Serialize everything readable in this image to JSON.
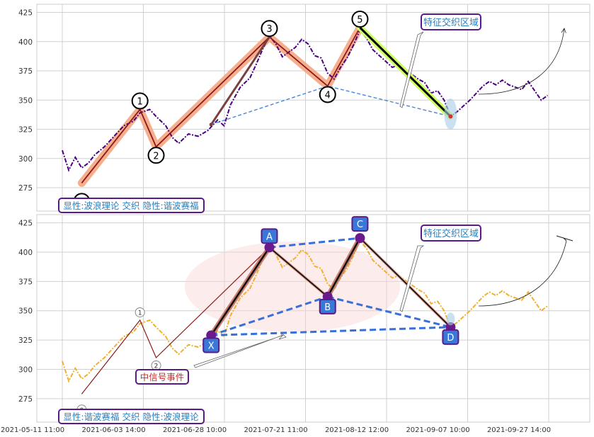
{
  "chart_data": [
    {
      "type": "line",
      "panel": "top",
      "x_ticks": [
        "2021-05-11 11:00",
        "2021-06-03 14:00",
        "2021-06-28 10:00",
        "2021-07-21 11:00",
        "2021-08-12 12:00",
        "2021-09-07 10:00",
        "2021-09-27 14:00"
      ],
      "ylim": [
        255,
        432
      ],
      "y_ticks": [
        275,
        300,
        325,
        350,
        375,
        400,
        425
      ],
      "grid": true,
      "price_color": "#4b0082",
      "price_series": [
        [
          0,
          307
        ],
        [
          2,
          290
        ],
        [
          4,
          301
        ],
        [
          6,
          292
        ],
        [
          8,
          296
        ],
        [
          10,
          303
        ],
        [
          13,
          310
        ],
        [
          16,
          319
        ],
        [
          19,
          328
        ],
        [
          22,
          332
        ],
        [
          24,
          339
        ],
        [
          27,
          342
        ],
        [
          29,
          336
        ],
        [
          32,
          328
        ],
        [
          34,
          318
        ],
        [
          36,
          313
        ],
        [
          39,
          321
        ],
        [
          42,
          319
        ],
        [
          45,
          324
        ],
        [
          48,
          333
        ],
        [
          50,
          328
        ],
        [
          52,
          346
        ],
        [
          55,
          361
        ],
        [
          58,
          369
        ],
        [
          60,
          381
        ],
        [
          62,
          394
        ],
        [
          64,
          405
        ],
        [
          66,
          398
        ],
        [
          68,
          387
        ],
        [
          70,
          391
        ],
        [
          72,
          395
        ],
        [
          74,
          402
        ],
        [
          76,
          398
        ],
        [
          78,
          388
        ],
        [
          80,
          386
        ],
        [
          82,
          373
        ],
        [
          84,
          368
        ],
        [
          86,
          378
        ],
        [
          88,
          386
        ],
        [
          90,
          397
        ],
        [
          92,
          410
        ],
        [
          94,
          403
        ],
        [
          96,
          393
        ],
        [
          98,
          388
        ],
        [
          100,
          383
        ],
        [
          102,
          378
        ],
        [
          104,
          380
        ],
        [
          106,
          376
        ],
        [
          108,
          372
        ],
        [
          110,
          368
        ],
        [
          112,
          365
        ],
        [
          114,
          356
        ],
        [
          116,
          358
        ],
        [
          118,
          350
        ],
        [
          120,
          336
        ],
        [
          122,
          340
        ],
        [
          124,
          345
        ],
        [
          126,
          350
        ],
        [
          128,
          356
        ],
        [
          130,
          362
        ],
        [
          132,
          366
        ],
        [
          134,
          363
        ],
        [
          136,
          367
        ],
        [
          138,
          363
        ],
        [
          140,
          361
        ],
        [
          142,
          359
        ],
        [
          144,
          366
        ],
        [
          146,
          358
        ],
        [
          148,
          350
        ],
        [
          150,
          354
        ]
      ],
      "wave_points": [
        {
          "label": "0",
          "x": 6,
          "y": 279
        },
        {
          "label": "1",
          "x": 24,
          "y": 342
        },
        {
          "label": "2",
          "x": 29,
          "y": 310
        },
        {
          "label": "3",
          "x": 64,
          "y": 404
        },
        {
          "label": "4",
          "x": 82,
          "y": 362
        },
        {
          "label": "5",
          "x": 92,
          "y": 412
        }
      ],
      "extra_segments": [
        {
          "from": [
            46,
            329
          ],
          "to": [
            64,
            404
          ],
          "color": "#7b3f3f"
        },
        {
          "from": [
            92,
            412
          ],
          "to": [
            120,
            336
          ],
          "color": "#000000",
          "highlight": "#ccff66"
        }
      ],
      "dashed_line": {
        "from": [
          46,
          329
        ],
        "to": [
          82,
          362
        ],
        "then": [
          120,
          336
        ],
        "color": "#4a86d8"
      },
      "annotation_label": "特征交织区域",
      "legend_text": "显性:波浪理论 交织 隐性:谐波赛福"
    },
    {
      "type": "line",
      "panel": "bottom",
      "ylim": [
        255,
        432
      ],
      "y_ticks": [
        275,
        300,
        325,
        350,
        375,
        400,
        425
      ],
      "grid": true,
      "price_color": "#f0b030",
      "harmonic_points": [
        {
          "label": "X",
          "x": 46,
          "y": 329
        },
        {
          "label": "A",
          "x": 64,
          "y": 404
        },
        {
          "label": "B",
          "x": 82,
          "y": 362
        },
        {
          "label": "C",
          "x": 92,
          "y": 412
        },
        {
          "label": "D",
          "x": 120,
          "y": 336
        }
      ],
      "wave_small": [
        {
          "label": "0",
          "x": 6,
          "y": 279
        },
        {
          "label": "1",
          "x": 24,
          "y": 342
        },
        {
          "label": "2",
          "x": 29,
          "y": 310
        }
      ],
      "annotation_label": "特征交织区域",
      "signal_label": "中信号事件",
      "legend_text": "显性:谐波赛福 交织 隐性:波浪理论"
    }
  ]
}
